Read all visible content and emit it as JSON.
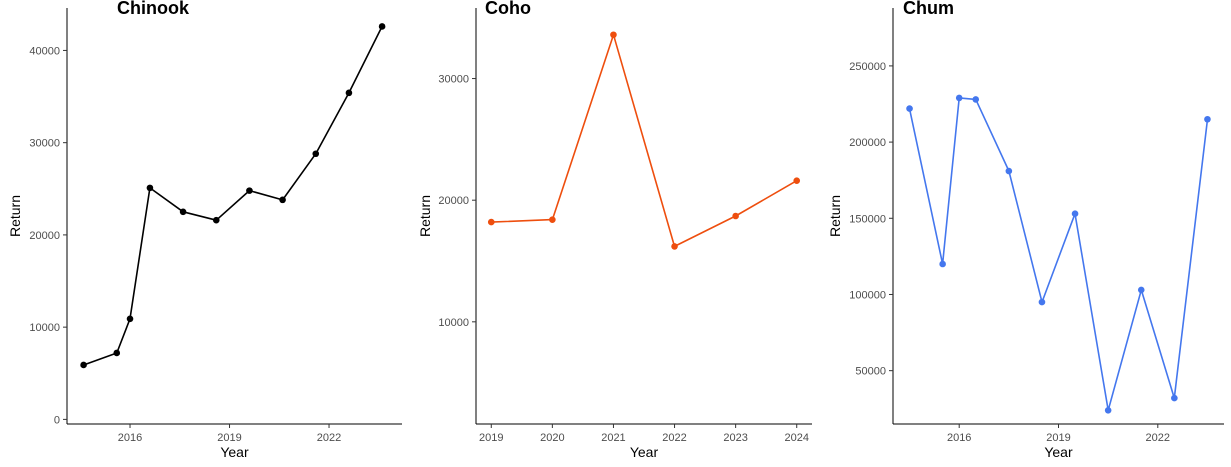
{
  "chart_data": [
    {
      "type": "line",
      "title": "Chinook",
      "xlabel": "Year",
      "ylabel": "Return",
      "color": "#000000",
      "x": [
        2014.6,
        2015.6,
        2016.0,
        2016.6,
        2017.6,
        2018.6,
        2019.6,
        2020.6,
        2021.6,
        2022.6,
        2023.6
      ],
      "values": [
        5900,
        7200,
        10900,
        25100,
        22500,
        21600,
        24800,
        23800,
        28800,
        35400,
        42600
      ],
      "xlim": [
        2014.1,
        2024.2
      ],
      "ylim": [
        -500,
        44600
      ],
      "xticks": [
        2016,
        2019,
        2022
      ],
      "xtick_labels": [
        "2016",
        "2019",
        "2022"
      ],
      "yticks": [
        0,
        10000,
        20000,
        30000,
        40000
      ],
      "ytick_labels": [
        "0",
        "10000",
        "20000",
        "30000",
        "40000"
      ],
      "grid": false,
      "legend": "none"
    },
    {
      "type": "line",
      "title": "Coho",
      "xlabel": "Year",
      "ylabel": "Return",
      "color": "#ee4e0e",
      "x": [
        2019,
        2020,
        2021,
        2022,
        2023,
        2024
      ],
      "values": [
        18200,
        18400,
        33600,
        16200,
        18700,
        21600
      ],
      "xlim": [
        2018.75,
        2024.25
      ],
      "ylim": [
        1600,
        35800
      ],
      "xticks": [
        2019,
        2020,
        2021,
        2022,
        2023,
        2024
      ],
      "xtick_labels": [
        "2019",
        "2020",
        "2021",
        "2022",
        "2023",
        "2024"
      ],
      "yticks": [
        10000,
        20000,
        30000
      ],
      "ytick_labels": [
        "10000",
        "20000",
        "30000"
      ],
      "grid": false,
      "legend": "none"
    },
    {
      "type": "line",
      "title": "Chum",
      "xlabel": "Year",
      "ylabel": "Return",
      "color": "#4477ee",
      "x": [
        2014.5,
        2015.5,
        2016.0,
        2016.5,
        2017.5,
        2018.5,
        2019.5,
        2020.5,
        2021.5,
        2022.5,
        2023.5
      ],
      "values": [
        222000,
        120000,
        229000,
        228000,
        181000,
        95000,
        153000,
        24000,
        103000,
        32000,
        215000
      ],
      "xlim": [
        2014.0,
        2024.0
      ],
      "ylim": [
        15000,
        288000
      ],
      "xticks": [
        2016,
        2019,
        2022
      ],
      "xtick_labels": [
        "2016",
        "2019",
        "2022"
      ],
      "yticks": [
        50000,
        100000,
        150000,
        200000,
        250000
      ],
      "ytick_labels": [
        "50000",
        "100000",
        "150000",
        "200000",
        "250000"
      ],
      "grid": false,
      "legend": "none"
    }
  ]
}
